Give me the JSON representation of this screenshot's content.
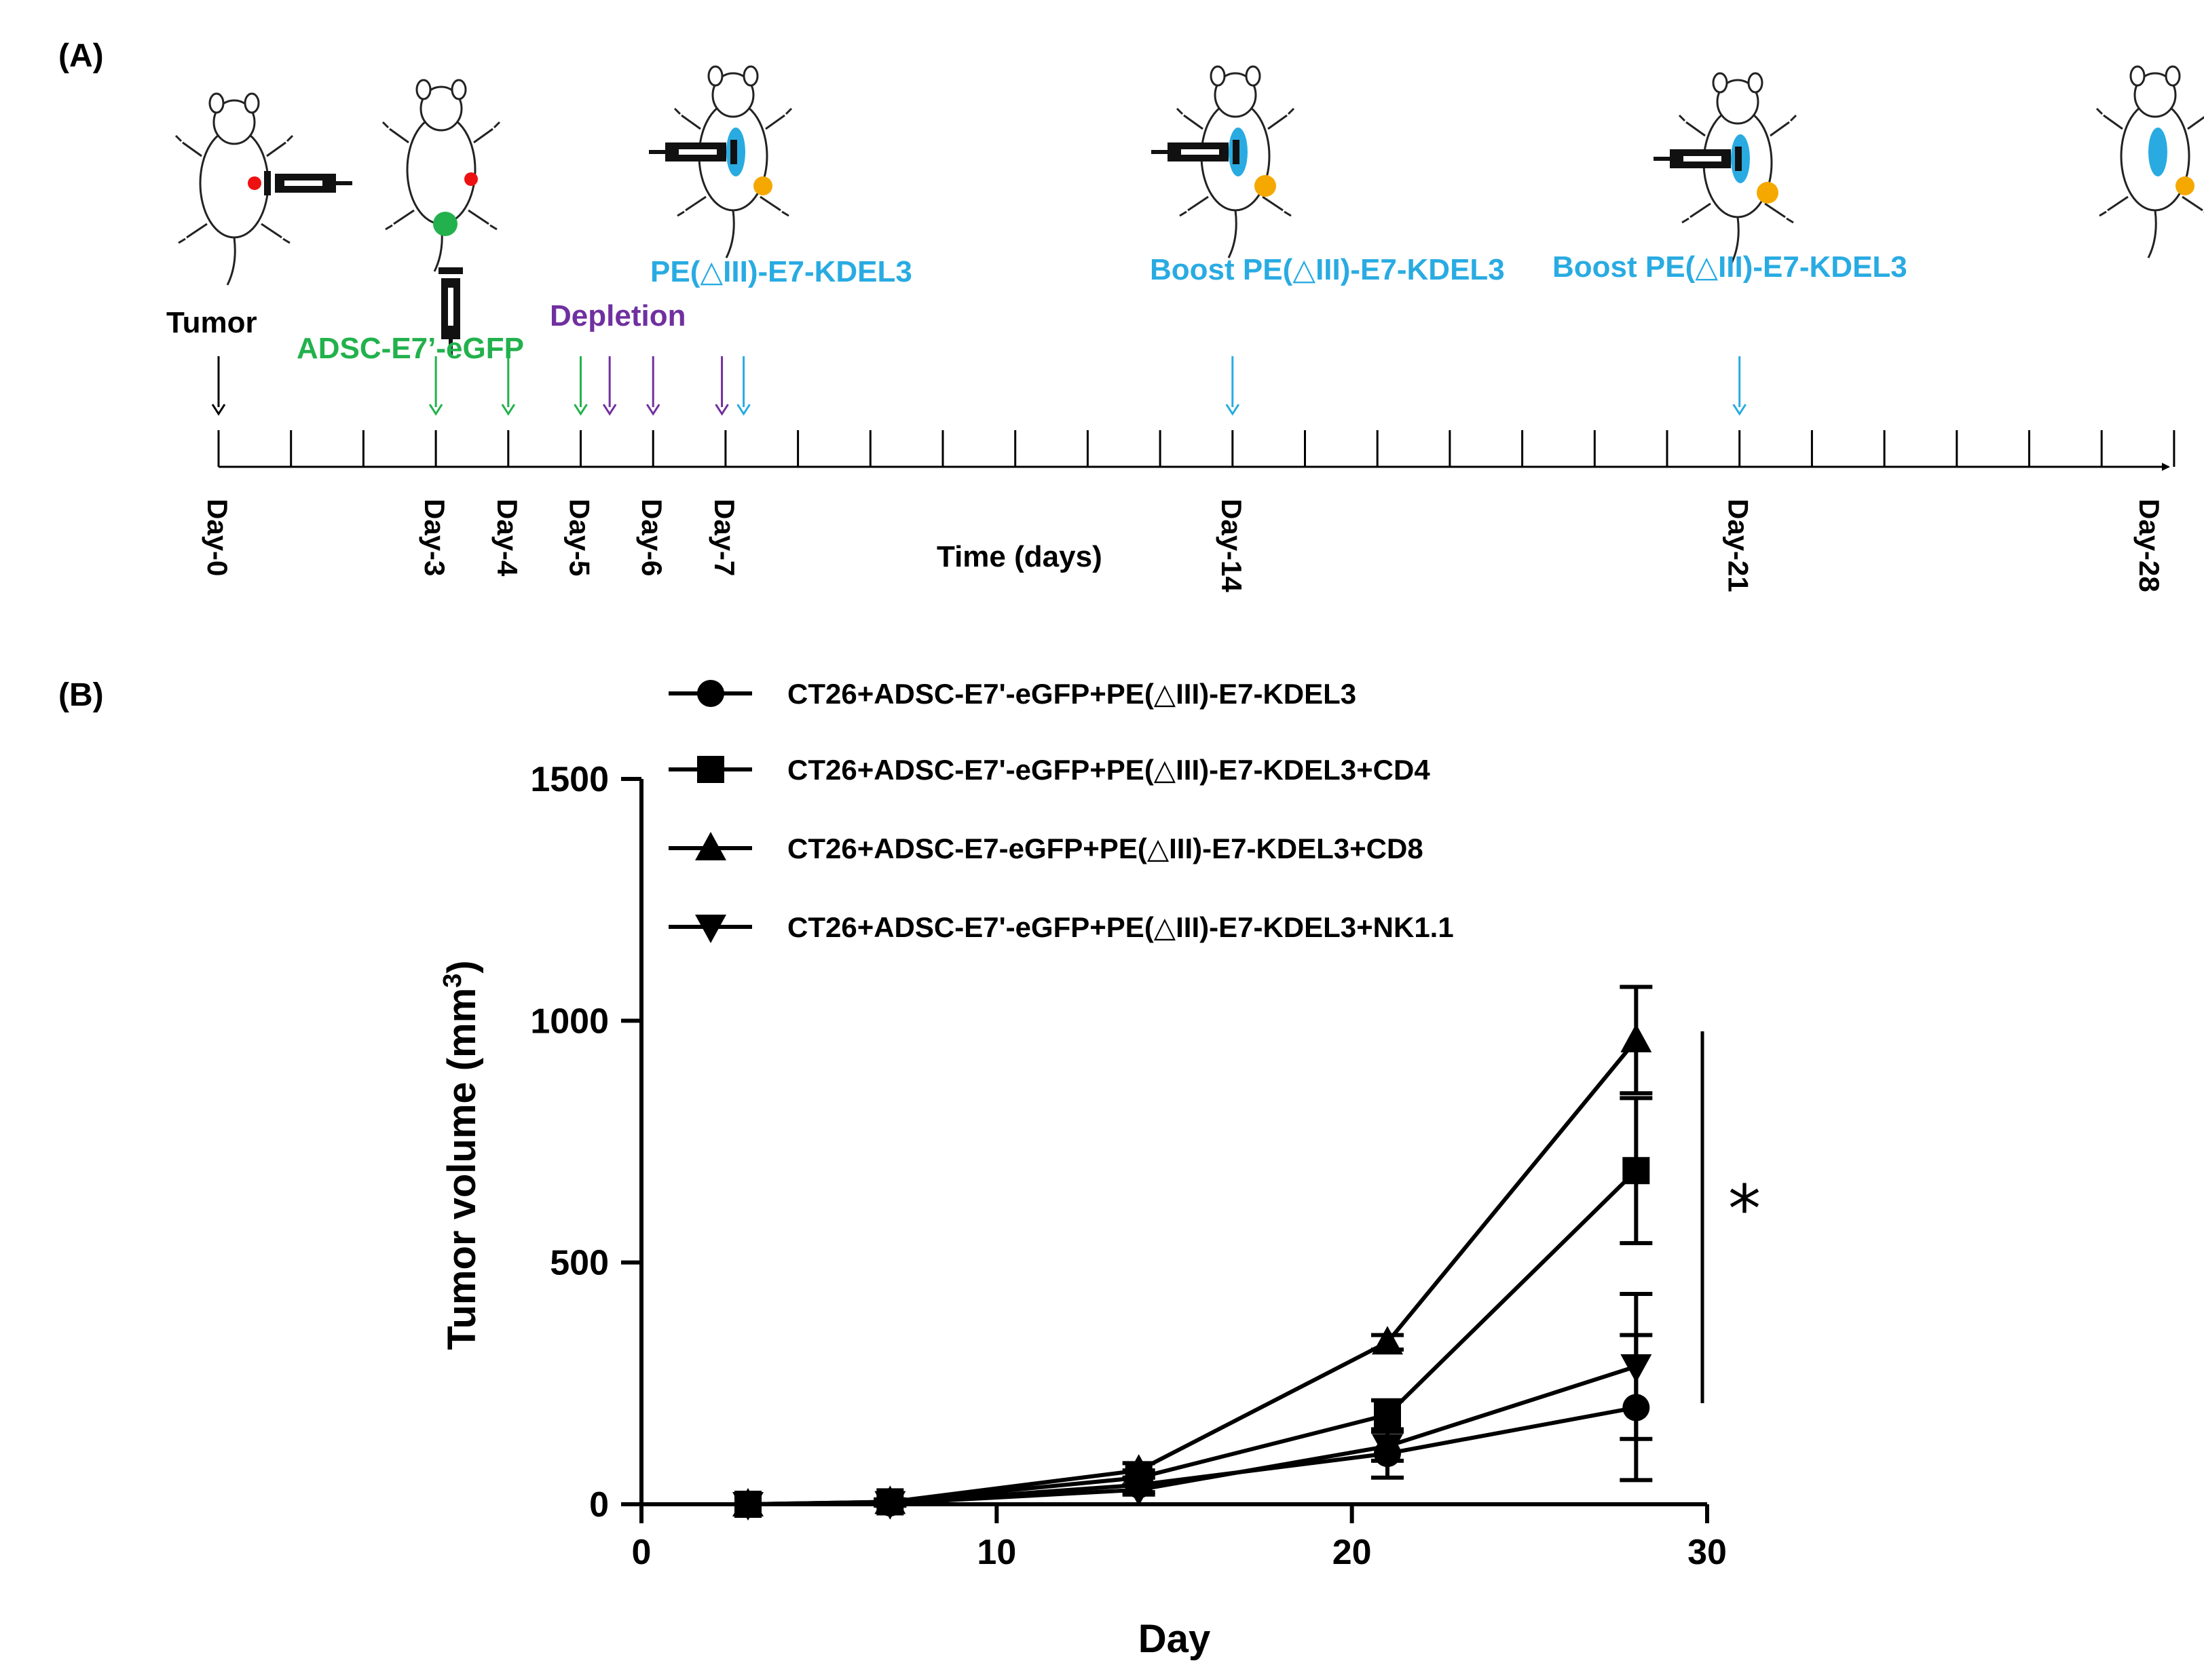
{
  "panel_a": {
    "label": "(A)",
    "axis_title": "Time (days)",
    "day_labels": [
      "Day-0",
      "Day-3",
      "Day-4",
      "Day-5",
      "Day-6",
      "Day-7",
      "Day-14",
      "Day-21",
      "Day-28"
    ],
    "events": {
      "tumor": "Tumor",
      "adsc": "ADSC-E7’-eGFP",
      "depletion": "Depletion",
      "vaccine": "PE(△III)-E7-KDEL3",
      "boost1": "Boost PE(△III)-E7-KDEL3",
      "boost2": "Boost PE(△III)-E7-KDEL3"
    },
    "colors": {
      "tumor": "#000000",
      "adsc": "#22b14c",
      "depletion": "#7030a0",
      "vaccine": "#29abe2"
    }
  },
  "chart_data": {
    "label": "(B)",
    "type": "line",
    "xlabel": "Day",
    "ylabel": "Tumor volume (mm",
    "ylabel_sup": "3",
    "ylabel_close": ")",
    "xlim": [
      0,
      30
    ],
    "ylim": [
      0,
      1500
    ],
    "xticks": [
      0,
      10,
      20,
      30
    ],
    "yticks": [
      0,
      500,
      1000,
      1500
    ],
    "x": [
      3,
      7,
      14,
      21,
      28
    ],
    "series": [
      {
        "name": "CT26+ADSC-E7'-eGFP+PE(△III)-E7-KDEL3",
        "marker": "circle",
        "values": [
          0,
          3,
          40,
          105,
          200
        ],
        "errors": [
          0,
          5,
          15,
          50,
          150
        ]
      },
      {
        "name": "CT26+ADSC-E7'-eGFP+PE(△III)-E7-KDEL3+CD4",
        "marker": "square",
        "values": [
          0,
          5,
          55,
          185,
          690
        ],
        "errors": [
          0,
          5,
          15,
          30,
          150
        ]
      },
      {
        "name": "CT26+ADSC-E7-eGFP+PE(△III)-E7-KDEL3+CD8",
        "marker": "triangle-up",
        "values": [
          0,
          5,
          70,
          335,
          960
        ],
        "errors": [
          0,
          5,
          15,
          15,
          110
        ]
      },
      {
        "name": "CT26+ADSC-E7'-eGFP+PE(△III)-E7-KDEL3+NK1.1",
        "marker": "triangle-down",
        "values": [
          0,
          2,
          30,
          120,
          285
        ],
        "errors": [
          0,
          5,
          10,
          30,
          150
        ]
      }
    ],
    "annotation": "*",
    "legend_position": "top"
  }
}
